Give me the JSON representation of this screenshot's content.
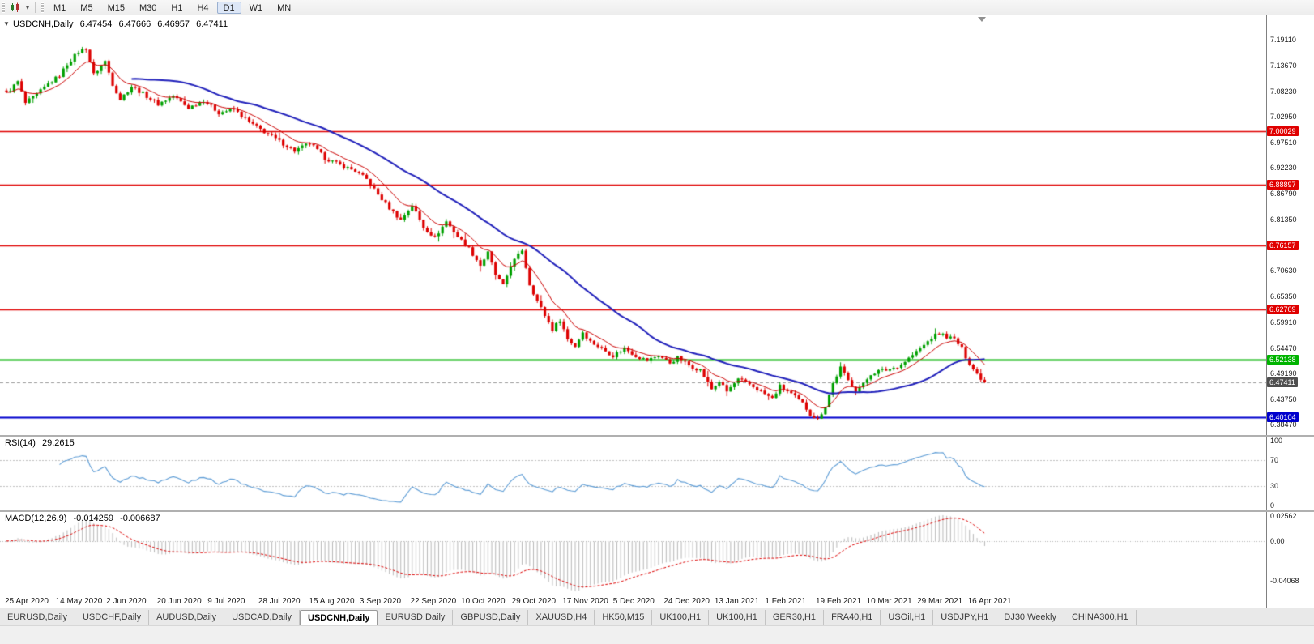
{
  "toolbar": {
    "timeframes": [
      "M1",
      "M5",
      "M15",
      "M30",
      "H1",
      "H4",
      "D1",
      "W1",
      "MN"
    ],
    "active_timeframe": "D1"
  },
  "main_chart": {
    "title_symbol": "USDCNH,Daily",
    "open": "6.47454",
    "high": "6.47666",
    "low": "6.46957",
    "close": "6.47411",
    "axis_labels": [
      {
        "text": "7.19110",
        "price": 7.1911
      },
      {
        "text": "7.13670",
        "price": 7.1367
      },
      {
        "text": "7.08230",
        "price": 7.0823
      },
      {
        "text": "7.02950",
        "price": 7.0295
      },
      {
        "text": "6.97510",
        "price": 6.9751
      },
      {
        "text": "6.92230",
        "price": 6.9223
      },
      {
        "text": "6.86790",
        "price": 6.8679
      },
      {
        "text": "6.81350",
        "price": 6.8135
      },
      {
        "text": "6.70630",
        "price": 6.7063
      },
      {
        "text": "6.65350",
        "price": 6.6535
      },
      {
        "text": "6.59910",
        "price": 6.5991
      },
      {
        "text": "6.54470",
        "price": 6.5447
      },
      {
        "text": "6.49190",
        "price": 6.4919
      },
      {
        "text": "6.43750",
        "price": 6.4375
      },
      {
        "text": "6.38470",
        "price": 6.3847
      }
    ],
    "lines": [
      {
        "label": "7.00029",
        "price": 7.00029,
        "color": "#e00000",
        "width": 1.4,
        "kind": "resistance"
      },
      {
        "label": "6.88897",
        "price": 6.88897,
        "color": "#e00000",
        "width": 1.4,
        "kind": "resistance"
      },
      {
        "label": "6.76157",
        "price": 6.76157,
        "color": "#e00000",
        "width": 1.4,
        "kind": "resistance"
      },
      {
        "label": "6.62709",
        "price": 6.62709,
        "color": "#e00000",
        "width": 1.4,
        "kind": "resistance"
      },
      {
        "label": "6.52138",
        "price": 6.52138,
        "color": "#00b400",
        "width": 2,
        "kind": "support"
      },
      {
        "label": "6.40104",
        "price": 6.40104,
        "color": "#0000cd",
        "width": 2,
        "kind": "support"
      }
    ],
    "current_price": {
      "label": "6.47411",
      "price": 6.47411,
      "bg": "#4f4f4f"
    }
  },
  "rsi": {
    "name": "RSI(14)",
    "value": "29.2615",
    "period": 14,
    "line_color": "#5b9bd5",
    "levels": [
      70,
      30
    ],
    "axis_labels": [
      {
        "text": "100",
        "v": 100
      },
      {
        "text": "70",
        "v": 70
      },
      {
        "text": "30",
        "v": 30
      },
      {
        "text": "0",
        "v": 0
      }
    ]
  },
  "macd": {
    "name": "MACD(12,26,9)",
    "value_main": "-0.014259",
    "value_signal": "-0.006687",
    "fast": 12,
    "slow": 26,
    "signal": 9,
    "histogram_color": "#b8b8b8",
    "signal_color": "#dd0000",
    "axis_labels": [
      {
        "text": "0.02562",
        "v": 0.02562
      },
      {
        "text": "0.00",
        "v": 0
      },
      {
        "text": "-0.04068",
        "v": -0.04068
      }
    ]
  },
  "dates": [
    "25 Apr 2020",
    "14 May 2020",
    "2 Jun 2020",
    "20 Jun 2020",
    "9 Jul 2020",
    "28 Jul 2020",
    "15 Aug 2020",
    "3 Sep 2020",
    "22 Sep 2020",
    "10 Oct 2020",
    "29 Oct 2020",
    "17 Nov 2020",
    "5 Dec 2020",
    "24 Dec 2020",
    "13 Jan 2021",
    "1 Feb 2021",
    "19 Feb 2021",
    "10 Mar 2021",
    "29 Mar 2021",
    "16 Apr 2021"
  ],
  "tabs": {
    "labels": [
      "EURUSD,Daily",
      "USDCHF,Daily",
      "AUDUSD,Daily",
      "USDCAD,Daily",
      "USDCNH,Daily",
      "EURUSD,Daily",
      "GBPUSD,Daily",
      "XAUUSD,H4",
      "HK50,M15",
      "UK100,H1",
      "UK100,H1",
      "GER30,H1",
      "FRA40,H1",
      "USOil,H1",
      "USDJPY,H1",
      "DJ30,Weekly",
      "CHINA300,H1"
    ],
    "active_index": 4
  },
  "chart_data": {
    "type": "candlestick",
    "title": "USDCNH Daily with RSI(14) and MACD(12,26,9)",
    "symbol": "USDCNH",
    "timeframe": "Daily",
    "bars": 259,
    "price_range": [
      6.3638,
      7.205
    ],
    "last_close": 6.47411,
    "up_color": "#00a000",
    "down_color": "#dd0000",
    "moving_averages": [
      {
        "type": "ema",
        "period": 10,
        "color": "#cc0000",
        "width": 1
      },
      {
        "type": "sma",
        "period": 34,
        "color": "#2020bb",
        "width": 2
      }
    ],
    "indicators": [
      {
        "name": "RSI",
        "period": 14,
        "current": 29.2615
      },
      {
        "name": "MACD",
        "fast": 12,
        "slow": 26,
        "signal": 9,
        "current_main": -0.014259,
        "current_signal": -0.006687
      }
    ],
    "close_path_anchors": [
      [
        0,
        7.08
      ],
      [
        3,
        7.105
      ],
      [
        5,
        7.06
      ],
      [
        8,
        7.078
      ],
      [
        11,
        7.1
      ],
      [
        14,
        7.118
      ],
      [
        16,
        7.142
      ],
      [
        19,
        7.168
      ],
      [
        21,
        7.175
      ],
      [
        23,
        7.12
      ],
      [
        26,
        7.148
      ],
      [
        28,
        7.1
      ],
      [
        30,
        7.068
      ],
      [
        33,
        7.095
      ],
      [
        36,
        7.08
      ],
      [
        40,
        7.058
      ],
      [
        44,
        7.075
      ],
      [
        48,
        7.05
      ],
      [
        52,
        7.066
      ],
      [
        56,
        7.04
      ],
      [
        60,
        7.047
      ],
      [
        64,
        7.02
      ],
      [
        68,
        7.0
      ],
      [
        72,
        6.98
      ],
      [
        76,
        6.96
      ],
      [
        80,
        6.976
      ],
      [
        84,
        6.945
      ],
      [
        88,
        6.93
      ],
      [
        92,
        6.918
      ],
      [
        95,
        6.9
      ],
      [
        98,
        6.868
      ],
      [
        101,
        6.84
      ],
      [
        104,
        6.815
      ],
      [
        107,
        6.846
      ],
      [
        110,
        6.8
      ],
      [
        113,
        6.778
      ],
      [
        116,
        6.812
      ],
      [
        119,
        6.78
      ],
      [
        122,
        6.755
      ],
      [
        125,
        6.72
      ],
      [
        127,
        6.746
      ],
      [
        129,
        6.7
      ],
      [
        131,
        6.676
      ],
      [
        133,
        6.72
      ],
      [
        136,
        6.752
      ],
      [
        138,
        6.68
      ],
      [
        140,
        6.645
      ],
      [
        142,
        6.615
      ],
      [
        144,
        6.585
      ],
      [
        146,
        6.606
      ],
      [
        148,
        6.565
      ],
      [
        150,
        6.55
      ],
      [
        152,
        6.58
      ],
      [
        154,
        6.56
      ],
      [
        157,
        6.545
      ],
      [
        160,
        6.53
      ],
      [
        163,
        6.546
      ],
      [
        166,
        6.53
      ],
      [
        169,
        6.52
      ],
      [
        172,
        6.531
      ],
      [
        175,
        6.515
      ],
      [
        177,
        6.526
      ],
      [
        180,
        6.51
      ],
      [
        183,
        6.5
      ],
      [
        186,
        6.46
      ],
      [
        188,
        6.476
      ],
      [
        190,
        6.455
      ],
      [
        193,
        6.48
      ],
      [
        196,
        6.47
      ],
      [
        199,
        6.455
      ],
      [
        202,
        6.44
      ],
      [
        204,
        6.466
      ],
      [
        207,
        6.45
      ],
      [
        210,
        6.43
      ],
      [
        212,
        6.408
      ],
      [
        214,
        6.396
      ],
      [
        216,
        6.425
      ],
      [
        218,
        6.472
      ],
      [
        220,
        6.505
      ],
      [
        222,
        6.478
      ],
      [
        224,
        6.458
      ],
      [
        226,
        6.47
      ],
      [
        228,
        6.492
      ],
      [
        230,
        6.498
      ],
      [
        232,
        6.5
      ],
      [
        234,
        6.505
      ],
      [
        236,
        6.512
      ],
      [
        238,
        6.525
      ],
      [
        240,
        6.538
      ],
      [
        242,
        6.552
      ],
      [
        244,
        6.568
      ],
      [
        246,
        6.578
      ],
      [
        248,
        6.57
      ],
      [
        250,
        6.565
      ],
      [
        252,
        6.545
      ],
      [
        253,
        6.528
      ],
      [
        254,
        6.515
      ],
      [
        255,
        6.502
      ],
      [
        256,
        6.492
      ],
      [
        257,
        6.483
      ],
      [
        258,
        6.47411
      ]
    ]
  }
}
